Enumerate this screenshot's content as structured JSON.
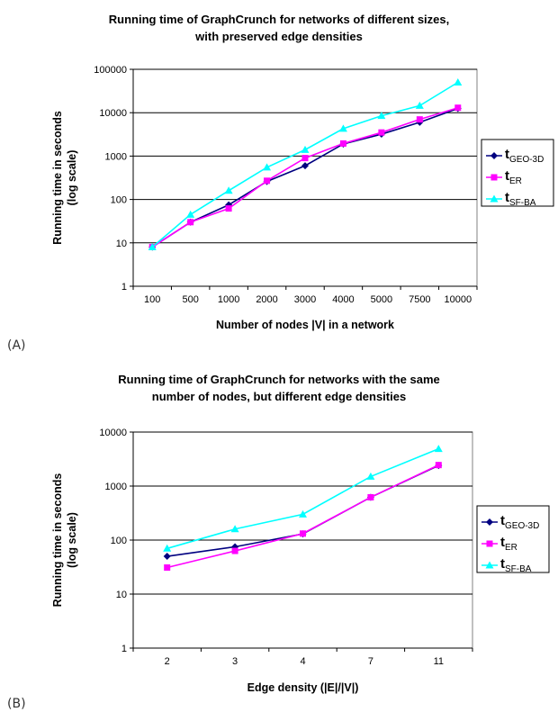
{
  "figure": {
    "panel_a_label": "(A)",
    "panel_b_label": "(B)"
  },
  "chart_data": [
    {
      "type": "line",
      "title": [
        "Running time of GraphCrunch  for networks of different sizes,",
        "with preserved edge densities"
      ],
      "xlabel": "Number of nodes |V| in a network",
      "ylabel": [
        "Running time in seconds",
        "(log scale)"
      ],
      "yscale": "log",
      "ylim": [
        1,
        100000
      ],
      "yticks": [
        1,
        10,
        100,
        1000,
        10000,
        100000
      ],
      "categories": [
        "100",
        "500",
        "1000",
        "2000",
        "3000",
        "4000",
        "5000",
        "7500",
        "10000"
      ],
      "grid": "horizontal",
      "legend_position": "right",
      "series": [
        {
          "name": "t",
          "subscript": "GEO-3D",
          "color": "#000080",
          "marker": "diamond",
          "values": [
            8,
            30,
            75,
            260,
            600,
            1900,
            3200,
            6000,
            12500
          ]
        },
        {
          "name": "t",
          "subscript": "ER",
          "color": "#FF00FF",
          "marker": "square",
          "values": [
            8,
            30,
            62,
            270,
            900,
            1950,
            3500,
            7000,
            13000
          ]
        },
        {
          "name": "t",
          "subscript": "SF-BA",
          "color": "#00FFFF",
          "marker": "triangle",
          "values": [
            8,
            45,
            160,
            550,
            1400,
            4300,
            8500,
            14500,
            50000
          ]
        }
      ]
    },
    {
      "type": "line",
      "title": [
        "Running time of GraphCrunch  for networks with the same",
        "number of nodes, but different edge densities"
      ],
      "xlabel": "Edge density (|E|/|V|)",
      "ylabel": [
        "Running time in seconds",
        "(log scale)"
      ],
      "yscale": "log",
      "ylim": [
        1,
        10000
      ],
      "yticks": [
        1,
        10,
        100,
        1000,
        10000
      ],
      "categories": [
        "2",
        "3",
        "4",
        "7",
        "11"
      ],
      "grid": "horizontal",
      "legend_position": "right",
      "series": [
        {
          "name": "t",
          "subscript": "GEO-3D",
          "color": "#000080",
          "marker": "diamond",
          "values": [
            50,
            75,
            130,
            620,
            2400
          ]
        },
        {
          "name": "t",
          "subscript": "ER",
          "color": "#FF00FF",
          "marker": "square",
          "values": [
            31,
            63,
            132,
            620,
            2450
          ]
        },
        {
          "name": "t",
          "subscript": "SF-BA",
          "color": "#00FFFF",
          "marker": "triangle",
          "values": [
            70,
            160,
            300,
            1500,
            4900
          ]
        }
      ]
    }
  ]
}
